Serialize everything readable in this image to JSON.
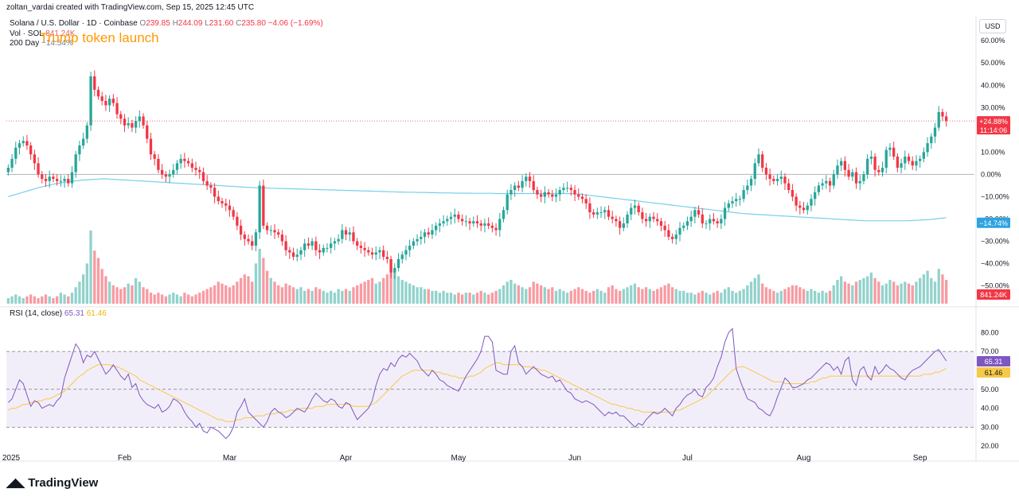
{
  "header": {
    "created_by": "zoltan_vardai created with TradingView.com, Sep 15, 2025 12:45 UTC",
    "symbol_line": "Solana / U.S. Dollar · 1D · Coinbase",
    "o_label": "O",
    "o_value": "239.85",
    "h_label": "H",
    "h_value": "244.09",
    "l_label": "L",
    "l_value": "231.60",
    "c_label": "C",
    "c_value": "235.80",
    "change": "−4.06 (−1.69%)",
    "vol_label": "Vol · SOL",
    "vol_value": "841.24K",
    "ma_label": "200 Day",
    "ma_value": "−14.54%"
  },
  "annotation": "Trump token launch",
  "currency_button": "USD",
  "rsi_legend": {
    "label": "RSI (14, close)",
    "rsi": "65.31",
    "ma": "61.46"
  },
  "badges": {
    "price_pct": "+24.88%",
    "countdown": "11:14:06",
    "ma_pct": "−14.74%",
    "volume": "841.24K",
    "rsi": "65.31",
    "rsi_ma": "61.46"
  },
  "footer": {
    "brand": "TradingView"
  },
  "colors": {
    "up": "#26a69a",
    "down": "#f23645",
    "ma": "#76d0e8",
    "rsi": "#7e57c2",
    "rsi_ma": "#f7c948",
    "annotation": "#ff9800"
  },
  "chart_data": {
    "type": "candlestick",
    "price_axis_ticks": [
      "60.00%",
      "50.00%",
      "40.00%",
      "30.00%",
      "20.00%",
      "10.00%",
      "0.00%",
      "−10.00%",
      "−20.00%",
      "−30.00%",
      "−40.00%",
      "−50.00%"
    ],
    "price_axis_values": [
      60,
      50,
      40,
      30,
      20,
      10,
      0,
      -10,
      -20,
      -30,
      -40,
      -50
    ],
    "ylim": [
      -58,
      64
    ],
    "rsi_axis_ticks": [
      "80.00",
      "70.00",
      "60.00",
      "50.00",
      "40.00",
      "30.00",
      "20.00"
    ],
    "rsi_axis_values": [
      80,
      70,
      60,
      50,
      40,
      30,
      20
    ],
    "rsi_ylim": [
      18,
      86
    ],
    "rsi_bands": [
      30,
      50,
      70
    ],
    "x_labels": [
      "2025",
      "Feb",
      "Mar",
      "Apr",
      "May",
      "Jun",
      "Jul",
      "Aug",
      "Sep"
    ],
    "x_label_index": [
      0,
      31,
      59,
      90,
      120,
      151,
      181,
      212,
      243
    ],
    "total_days": 258,
    "close_pct": [
      3,
      7,
      12,
      14,
      15,
      13,
      9,
      5,
      0,
      -2,
      -3,
      -1,
      -2,
      -3,
      -3,
      -2,
      -4,
      1,
      9,
      13,
      16,
      22,
      44,
      38,
      35,
      33,
      31,
      34,
      32,
      27,
      25,
      22,
      23,
      21,
      24,
      26,
      22,
      16,
      9,
      7,
      2,
      0,
      -1,
      0,
      2,
      5,
      7,
      6,
      5,
      3,
      2,
      1,
      -3,
      -5,
      -6,
      -10,
      -12,
      -13,
      -14,
      -16,
      -19,
      -23,
      -27,
      -29,
      -30,
      -32,
      -26,
      -5,
      -23,
      -25,
      -25,
      -26,
      -27,
      -30,
      -34,
      -35,
      -37,
      -36,
      -34,
      -31,
      -32,
      -30,
      -34,
      -35,
      -33,
      -33,
      -31,
      -30,
      -29,
      -25,
      -27,
      -26,
      -30,
      -32,
      -33,
      -34,
      -35,
      -36,
      -35,
      -34,
      -37,
      -38,
      -44,
      -42,
      -38,
      -36,
      -34,
      -32,
      -30,
      -29,
      -28,
      -26,
      -27,
      -25,
      -23,
      -22,
      -21,
      -20,
      -19,
      -18,
      -20,
      -21,
      -21,
      -22,
      -21,
      -22,
      -23,
      -22,
      -23,
      -24,
      -25,
      -20,
      -16,
      -9,
      -7,
      -5,
      -6,
      -3,
      -1,
      -3,
      -7,
      -9,
      -10,
      -8,
      -9,
      -10,
      -9,
      -7,
      -6,
      -6,
      -7,
      -9,
      -10,
      -11,
      -13,
      -17,
      -18,
      -17,
      -17,
      -16,
      -19,
      -20,
      -21,
      -24,
      -22,
      -18,
      -15,
      -14,
      -17,
      -20,
      -21,
      -19,
      -20,
      -21,
      -23,
      -25,
      -28,
      -29,
      -27,
      -24,
      -23,
      -21,
      -19,
      -16,
      -18,
      -22,
      -22,
      -20,
      -21,
      -22,
      -20,
      -15,
      -13,
      -12,
      -11,
      -11,
      -7,
      -5,
      -2,
      5,
      9,
      3,
      0,
      -2,
      -3,
      -2,
      -1,
      -4,
      -7,
      -10,
      -14,
      -15,
      -16,
      -14,
      -11,
      -8,
      -5,
      -4,
      -3,
      -5,
      0,
      4,
      6,
      2,
      -1,
      1,
      -4,
      -3,
      0,
      7,
      8,
      2,
      1,
      3,
      11,
      12,
      8,
      3,
      5,
      8,
      6,
      4,
      6,
      7,
      10,
      14,
      17,
      21,
      28,
      26,
      24
    ],
    "ma200_pct": [
      -10,
      -9.5,
      -9,
      -8.5,
      -8,
      -7.5,
      -7,
      -6.5,
      -6,
      -5.6,
      -5.2,
      -4.8,
      -4.4,
      -4.1,
      -3.8,
      -3.5,
      -3.3,
      -3.1,
      -2.9,
      -2.7,
      -2.5,
      -2.4,
      -2.3,
      -2.2,
      -2.1,
      -2.0,
      -2.0,
      -2.1,
      -2.2,
      -2.3,
      -2.4,
      -2.5,
      -2.6,
      -2.7,
      -2.8,
      -2.9,
      -3.0,
      -3.1,
      -3.2,
      -3.3,
      -3.4,
      -3.5,
      -3.6,
      -3.7,
      -3.8,
      -3.9,
      -4.0,
      -4.1,
      -4.2,
      -4.3,
      -4.4,
      -4.5,
      -4.6,
      -4.7,
      -4.8,
      -4.9,
      -5.0,
      -5.1,
      -5.2,
      -5.3,
      -5.4,
      -5.5,
      -5.6,
      -5.7,
      -5.8,
      -5.9,
      -6.0,
      -6.0,
      -6.1,
      -6.1,
      -6.2,
      -6.2,
      -6.3,
      -6.3,
      -6.4,
      -6.4,
      -6.5,
      -6.5,
      -6.6,
      -6.6,
      -6.7,
      -6.7,
      -6.8,
      -6.8,
      -6.9,
      -6.9,
      -7.0,
      -7.0,
      -7.1,
      -7.1,
      -7.2,
      -7.2,
      -7.3,
      -7.3,
      -7.4,
      -7.4,
      -7.5,
      -7.5,
      -7.6,
      -7.6,
      -7.7,
      -7.7,
      -7.8,
      -7.8,
      -7.9,
      -7.9,
      -8.0,
      -8.0,
      -8.0,
      -8.1,
      -8.1,
      -8.1,
      -8.2,
      -8.2,
      -8.2,
      -8.3,
      -8.3,
      -8.3,
      -8.3,
      -8.4,
      -8.4,
      -8.4,
      -8.4,
      -8.4,
      -8.5,
      -8.5,
      -8.5,
      -8.5,
      -8.5,
      -8.5,
      -8.6,
      -8.6,
      -8.6,
      -8.6,
      -8.6,
      -8.6,
      -8.6,
      -8.6,
      -8.6,
      -8.6,
      -8.6,
      -8.6,
      -8.6,
      -8.6,
      -8.6,
      -8.6,
      -8.6,
      -8.6,
      -8.6,
      -8.6,
      -8.6,
      -8.7,
      -8.8,
      -9.0,
      -9.2,
      -9.4,
      -9.6,
      -9.8,
      -10.0,
      -10.2,
      -10.4,
      -10.6,
      -10.8,
      -11.0,
      -11.2,
      -11.4,
      -11.6,
      -11.8,
      -12.0,
      -12.2,
      -12.4,
      -12.6,
      -12.8,
      -13.0,
      -13.2,
      -13.4,
      -13.6,
      -13.8,
      -14.0,
      -14.2,
      -14.4,
      -14.6,
      -14.8,
      -15.0,
      -15.2,
      -15.4,
      -15.6,
      -15.8,
      -16.0,
      -16.2,
      -16.4,
      -16.6,
      -16.8,
      -17.0,
      -17.2,
      -17.4,
      -17.6,
      -17.7,
      -17.8,
      -17.9,
      -18.0,
      -18.1,
      -18.2,
      -18.3,
      -18.4,
      -18.5,
      -18.6,
      -18.7,
      -18.8,
      -18.9,
      -19.0,
      -19.1,
      -19.2,
      -19.3,
      -19.4,
      -19.5,
      -19.6,
      -19.7,
      -19.8,
      -19.9,
      -20.0,
      -20.1,
      -20.2,
      -20.3,
      -20.4,
      -20.5,
      -20.6,
      -20.7,
      -20.8,
      -20.8,
      -20.8,
      -20.8,
      -20.8,
      -20.8,
      -20.8,
      -20.8,
      -20.8,
      -20.8,
      -20.8,
      -20.8,
      -20.8,
      -20.7,
      -20.6,
      -20.5,
      -20.4,
      -20.3,
      -20.2,
      -20.0,
      -19.8,
      -19.6,
      -19.4
    ],
    "volume_rel": [
      3,
      4,
      5,
      4,
      3,
      4,
      5,
      4,
      3,
      4,
      5,
      4,
      3,
      4,
      6,
      5,
      4,
      6,
      9,
      12,
      16,
      22,
      40,
      29,
      25,
      19,
      15,
      12,
      10,
      9,
      8,
      9,
      11,
      10,
      14,
      12,
      9,
      8,
      6,
      5,
      6,
      5,
      4,
      5,
      6,
      5,
      4,
      6,
      5,
      4,
      5,
      6,
      7,
      8,
      9,
      10,
      12,
      11,
      10,
      9,
      10,
      12,
      14,
      16,
      15,
      12,
      22,
      30,
      25,
      18,
      14,
      12,
      10,
      9,
      11,
      10,
      9,
      8,
      9,
      7,
      8,
      7,
      9,
      8,
      7,
      6,
      7,
      6,
      8,
      7,
      8,
      7,
      9,
      10,
      11,
      12,
      13,
      14,
      11,
      12,
      14,
      16,
      20,
      18,
      15,
      13,
      12,
      11,
      10,
      9,
      9,
      8,
      8,
      7,
      7,
      6,
      7,
      6,
      6,
      5,
      6,
      5,
      6,
      6,
      5,
      6,
      7,
      6,
      5,
      6,
      7,
      8,
      10,
      12,
      13,
      11,
      10,
      9,
      8,
      9,
      12,
      11,
      10,
      9,
      8,
      9,
      7,
      8,
      7,
      6,
      7,
      8,
      9,
      8,
      7,
      6,
      7,
      8,
      7,
      6,
      9,
      10,
      8,
      7,
      8,
      9,
      10,
      11,
      9,
      8,
      9,
      8,
      7,
      8,
      9,
      10,
      11,
      9,
      8,
      7,
      7,
      6,
      6,
      5,
      6,
      7,
      6,
      5,
      6,
      7,
      6,
      8,
      9,
      7,
      6,
      7,
      8,
      10,
      12,
      14,
      16,
      11,
      9,
      8,
      7,
      6,
      7,
      8,
      9,
      10,
      10,
      9,
      8,
      7,
      8,
      7,
      6,
      7,
      6,
      7,
      10,
      13,
      15,
      12,
      11,
      10,
      12,
      13,
      14,
      15,
      17,
      14,
      12,
      10,
      11,
      13,
      12,
      10,
      11,
      12,
      11,
      10,
      12,
      14,
      16,
      18,
      14,
      12,
      19,
      16,
      13
    ],
    "rsi": [
      43,
      45,
      50,
      55,
      53,
      47,
      41,
      44,
      43,
      40,
      41,
      42,
      41,
      44,
      46,
      56,
      62,
      68,
      74,
      71,
      64,
      68,
      67,
      70,
      66,
      62,
      58,
      60,
      63,
      60,
      57,
      55,
      58,
      51,
      53,
      47,
      44,
      42,
      41,
      40,
      42,
      38,
      39,
      41,
      45,
      44,
      42,
      38,
      35,
      33,
      30,
      32,
      28,
      27,
      30,
      29,
      28,
      26,
      24,
      26,
      30,
      38,
      41,
      45,
      38,
      36,
      34,
      32,
      30,
      33,
      38,
      40,
      38,
      37,
      35,
      36,
      38,
      40,
      39,
      38,
      41,
      45,
      48,
      46,
      44,
      43,
      45,
      44,
      41,
      40,
      43,
      42,
      38,
      34,
      36,
      38,
      40,
      44,
      52,
      58,
      61,
      60,
      64,
      62,
      66,
      68,
      67,
      69,
      67,
      65,
      61,
      59,
      57,
      60,
      58,
      55,
      54,
      52,
      51,
      50,
      49,
      53,
      57,
      60,
      63,
      66,
      70,
      78,
      78,
      75,
      60,
      59,
      58,
      58,
      70,
      73,
      64,
      62,
      58,
      60,
      62,
      60,
      58,
      57,
      56,
      57,
      54,
      55,
      52,
      49,
      48,
      45,
      44,
      43,
      44,
      43,
      42,
      40,
      38,
      36,
      38,
      37,
      38,
      36,
      36,
      34,
      32,
      30,
      32,
      31,
      34,
      36,
      38,
      37,
      38,
      40,
      38,
      36,
      40,
      42,
      45,
      47,
      48,
      50,
      47,
      46,
      51,
      53,
      56,
      62,
      67,
      75,
      80,
      82,
      61,
      55,
      50,
      45,
      44,
      43,
      40,
      39,
      37,
      36,
      40,
      46,
      51,
      56,
      54,
      51,
      51,
      52,
      53,
      55,
      56,
      58,
      60,
      62,
      64,
      63,
      60,
      62,
      58,
      65,
      67,
      55,
      52,
      60,
      62,
      57,
      55,
      62,
      58,
      60,
      63,
      61,
      60,
      58,
      56,
      55,
      58,
      60,
      61,
      62,
      64,
      66,
      68,
      70,
      71,
      68,
      65
    ],
    "rsi_ma": [
      39,
      40,
      40,
      41,
      42,
      42,
      43,
      43,
      44,
      44,
      45,
      45,
      46,
      47,
      48,
      49,
      51,
      53,
      55,
      57,
      58,
      60,
      61,
      62,
      63,
      63,
      63,
      63,
      62,
      62,
      61,
      60,
      59,
      58,
      57,
      55,
      54,
      53,
      52,
      51,
      50,
      49,
      48,
      47,
      46,
      45,
      44,
      43,
      42,
      41,
      40,
      39,
      38,
      37,
      36,
      35,
      34,
      34,
      33,
      33,
      33,
      34,
      34,
      35,
      35,
      35,
      36,
      36,
      36,
      37,
      37,
      37,
      38,
      38,
      38,
      39,
      39,
      39,
      40,
      40,
      40,
      40,
      41,
      41,
      41,
      42,
      42,
      42,
      42,
      42,
      42,
      42,
      41,
      41,
      41,
      41,
      41,
      42,
      43,
      45,
      47,
      49,
      51,
      53,
      55,
      57,
      58,
      59,
      60,
      60,
      60,
      60,
      60,
      60,
      59,
      59,
      58,
      58,
      57,
      57,
      56,
      56,
      56,
      57,
      57,
      58,
      59,
      61,
      62,
      63,
      64,
      64,
      63,
      63,
      63,
      63,
      63,
      62,
      62,
      62,
      61,
      61,
      60,
      60,
      59,
      58,
      57,
      56,
      55,
      54,
      53,
      52,
      51,
      50,
      49,
      48,
      47,
      46,
      45,
      44,
      43,
      42,
      42,
      41,
      41,
      40,
      40,
      39,
      39,
      38,
      38,
      38,
      38,
      38,
      38,
      38,
      38,
      38,
      39,
      39,
      40,
      41,
      42,
      43,
      44,
      45,
      46,
      48,
      50,
      52,
      54,
      56,
      58,
      60,
      61,
      62,
      62,
      61,
      60,
      59,
      58,
      57,
      56,
      55,
      54,
      54,
      54,
      53,
      53,
      53,
      53,
      53,
      53,
      53,
      54,
      54,
      55,
      56,
      56,
      57,
      57,
      57,
      57,
      57,
      57,
      57,
      57,
      57,
      57,
      57,
      57,
      57,
      57,
      57,
      57,
      57,
      57,
      57,
      57,
      57,
      57,
      57,
      57,
      57,
      58,
      58,
      58,
      59,
      59,
      60,
      61
    ]
  }
}
